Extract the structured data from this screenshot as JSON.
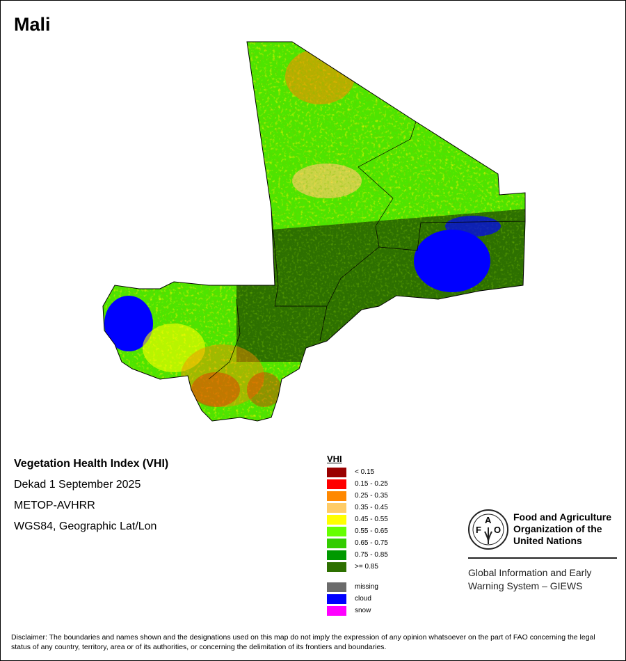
{
  "title": "Mali",
  "info": {
    "product": "Vegetation Health Index (VHI)",
    "period": "Dekad 1 September 2025",
    "sensor": "METOP-AVHRR",
    "projection": "WGS84, Geographic Lat/Lon"
  },
  "legend": {
    "title": "VHI",
    "classes": [
      {
        "label": "< 0.15",
        "color": "#990000"
      },
      {
        "label": "0.15 - 0.25",
        "color": "#ff0000"
      },
      {
        "label": "0.25 - 0.35",
        "color": "#ff8800"
      },
      {
        "label": "0.35 - 0.45",
        "color": "#ffcc66"
      },
      {
        "label": "0.45 - 0.55",
        "color": "#ffff00"
      },
      {
        "label": "0.55 - 0.65",
        "color": "#66ff00"
      },
      {
        "label": "0.65 - 0.75",
        "color": "#33cc00"
      },
      {
        "label": "0.75 - 0.85",
        "color": "#009900"
      },
      {
        "label": ">= 0.85",
        "color": "#2d7000"
      }
    ],
    "other": [
      {
        "label": "missing",
        "color": "#6b6b6b"
      },
      {
        "label": "cloud",
        "color": "#0000ff"
      },
      {
        "label": "snow",
        "color": "#ff00ff"
      }
    ]
  },
  "logo": {
    "org_line1": "Food and Agriculture",
    "org_line2": "Organization of the",
    "org_line3": "United Nations",
    "giews_line1": "Global Information and Early",
    "giews_line2": "Warning System – GIEWS",
    "emblem_text": "FAO FIAT PANIS"
  },
  "disclaimer": "Disclaimer: The boundaries and names shown and the designations used on this map do not imply the expression of any opinion whatsoever on the part of FAO concerning the legal status of any country, territory, area or of its authorities, or concerning the delimitation of its frontiers and boundaries."
}
